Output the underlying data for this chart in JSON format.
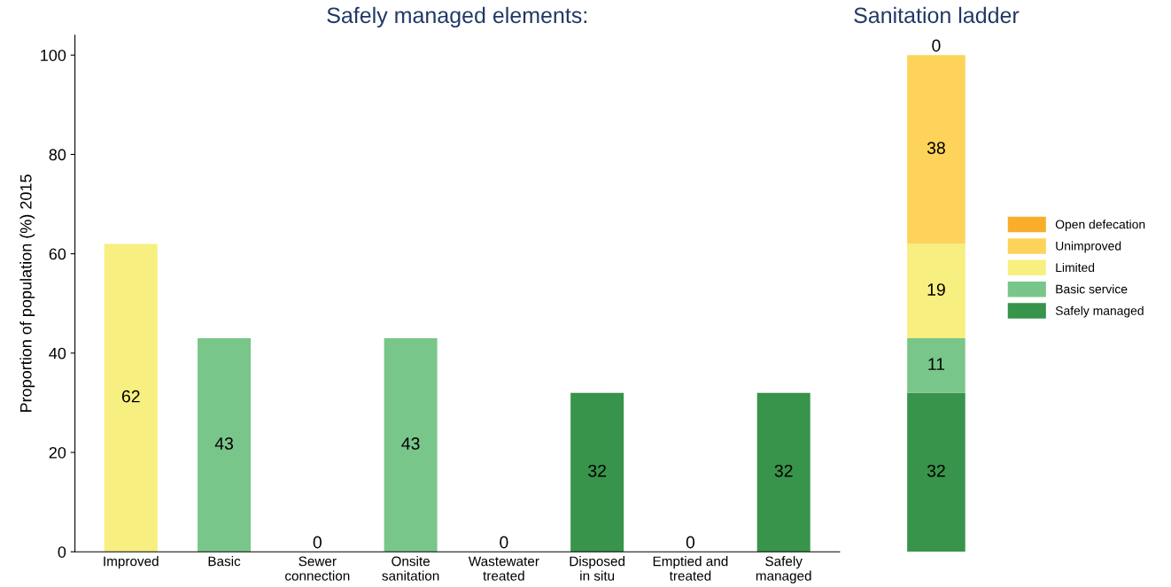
{
  "chart_data": [
    {
      "type": "bar",
      "title": "Safely managed elements:",
      "ylabel": "Proportion of population (%) 2015",
      "categories": [
        "Improved",
        "Basic",
        "Sewer\nconnection",
        "Onsite\nsanitation",
        "Wastewater\ntreated",
        "Disposed\nin situ",
        "Emptied and\ntreated",
        "Safely\nmanaged"
      ],
      "values": [
        62,
        43,
        0,
        43,
        0,
        32,
        0,
        32
      ],
      "colors": [
        "#f7ef7f",
        "#79c68a",
        "#37944a",
        "#79c68a",
        "#37944a",
        "#37944a",
        "#37944a",
        "#37944a"
      ],
      "ylim": [
        0,
        104
      ],
      "yticks": [
        0,
        20,
        40,
        60,
        80,
        100
      ],
      "data_labels": true
    },
    {
      "type": "bar",
      "title": "Sanitation ladder",
      "categories": [
        null
      ],
      "stacked": true,
      "series": [
        {
          "name": "Safely managed",
          "color": "#37944a",
          "values": [
            32
          ]
        },
        {
          "name": "Basic service",
          "color": "#79c68a",
          "values": [
            11
          ]
        },
        {
          "name": "Limited",
          "color": "#f7ef7f",
          "values": [
            19
          ]
        },
        {
          "name": "Unimproved",
          "color": "#fdd35a",
          "values": [
            38
          ]
        },
        {
          "name": "Open defecation",
          "color": "#f9ae2b",
          "values": [
            0
          ]
        }
      ],
      "tick_labels": false,
      "data_labels": true,
      "legend": "right"
    }
  ]
}
